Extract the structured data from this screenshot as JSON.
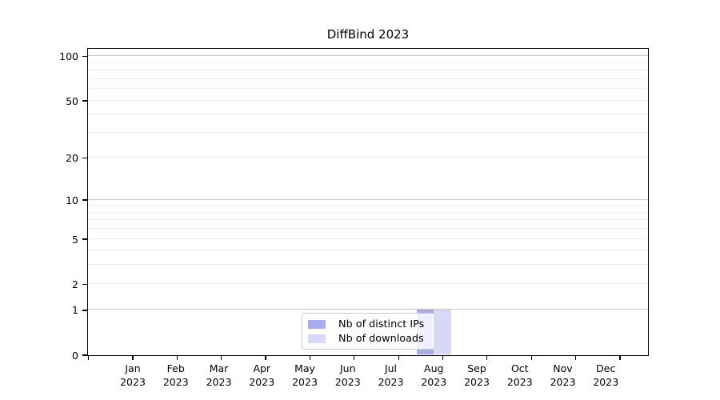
{
  "chart_data": {
    "type": "bar",
    "title": "DiffBind 2023",
    "categories": [
      "Jan 2023",
      "Feb 2023",
      "Mar 2023",
      "Apr 2023",
      "May 2023",
      "Jun 2023",
      "Jul 2023",
      "Aug 2023",
      "Sep 2023",
      "Oct 2023",
      "Nov 2023",
      "Dec 2023"
    ],
    "series": [
      {
        "name": "Nb of distinct IPs",
        "color": "#aaaaee",
        "values": [
          0,
          0,
          0,
          0,
          0,
          0,
          0,
          1,
          0,
          0,
          0,
          0
        ]
      },
      {
        "name": "Nb of downloads",
        "color": "#d8d8f6",
        "values": [
          0,
          0,
          0,
          0,
          0,
          0,
          0,
          1,
          0,
          0,
          0,
          0
        ]
      }
    ],
    "y_axis": {
      "scale": "log1p",
      "tick_values": [
        0,
        1,
        2,
        5,
        10,
        20,
        50,
        100
      ],
      "major_gridlines": [
        1,
        10,
        100
      ],
      "minor_gridlines": [
        2,
        3,
        4,
        5,
        6,
        7,
        8,
        9,
        20,
        30,
        40,
        50,
        60,
        70,
        80,
        90
      ],
      "ylim": [
        0,
        112
      ]
    },
    "legend": {
      "position": "bottom-center"
    },
    "grid": true
  },
  "colors": {
    "background": "#ffffff",
    "axis": "#000000",
    "text": "#000000",
    "major_gridline": "#c8c8c8",
    "minor_gridline": "#ececec",
    "legend_border": "#c9c9c9"
  }
}
